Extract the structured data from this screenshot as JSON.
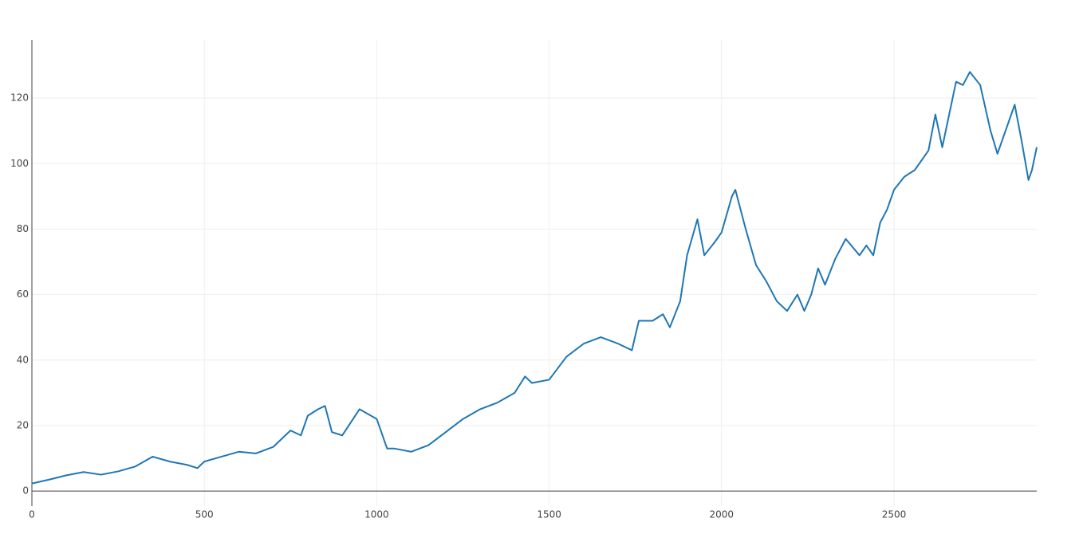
{
  "chart_data": {
    "type": "line",
    "x": [
      0,
      50,
      100,
      150,
      200,
      250,
      300,
      350,
      400,
      450,
      480,
      500,
      550,
      600,
      650,
      700,
      750,
      780,
      800,
      830,
      850,
      870,
      900,
      950,
      1000,
      1030,
      1050,
      1100,
      1150,
      1200,
      1250,
      1300,
      1350,
      1400,
      1430,
      1450,
      1500,
      1550,
      1600,
      1650,
      1700,
      1740,
      1760,
      1800,
      1830,
      1850,
      1880,
      1900,
      1930,
      1950,
      1980,
      2000,
      2030,
      2040,
      2070,
      2100,
      2130,
      2160,
      2190,
      2220,
      2240,
      2260,
      2280,
      2300,
      2330,
      2360,
      2400,
      2420,
      2440,
      2460,
      2480,
      2500,
      2530,
      2560,
      2600,
      2620,
      2640,
      2680,
      2700,
      2720,
      2750,
      2780,
      2800,
      2830,
      2850,
      2870,
      2890,
      2900,
      2914
    ],
    "series": [
      {
        "color": "#1f77b4",
        "values": [
          2.3,
          3.5,
          4.8,
          5.8,
          5.0,
          6.0,
          7.5,
          10.5,
          9.0,
          8.0,
          7.0,
          9.0,
          10.5,
          12,
          11.5,
          13.5,
          18.5,
          17,
          23,
          25,
          26,
          18,
          17,
          25,
          22,
          13,
          13,
          12,
          14,
          18,
          22,
          25,
          27,
          30,
          35,
          33,
          34,
          41,
          45,
          47,
          45,
          43,
          52,
          52,
          54,
          50,
          58,
          72,
          83,
          72,
          76,
          79,
          90,
          92,
          80,
          69,
          64,
          58,
          55,
          60,
          55,
          60,
          68,
          63,
          71,
          77,
          72,
          75,
          72,
          82,
          86,
          92,
          96,
          98,
          104,
          115,
          105,
          125,
          124,
          128,
          124,
          110,
          103,
          112,
          118,
          107,
          95,
          98,
          105
        ]
      }
    ],
    "xlim": [
      0,
      2914
    ],
    "ylim": [
      -4.6,
      137.8
    ],
    "xticks": [
      0,
      500,
      1000,
      1500,
      2000,
      2500
    ],
    "yticks": [
      0,
      20,
      40,
      60,
      80,
      100,
      120
    ],
    "grid": true
  }
}
